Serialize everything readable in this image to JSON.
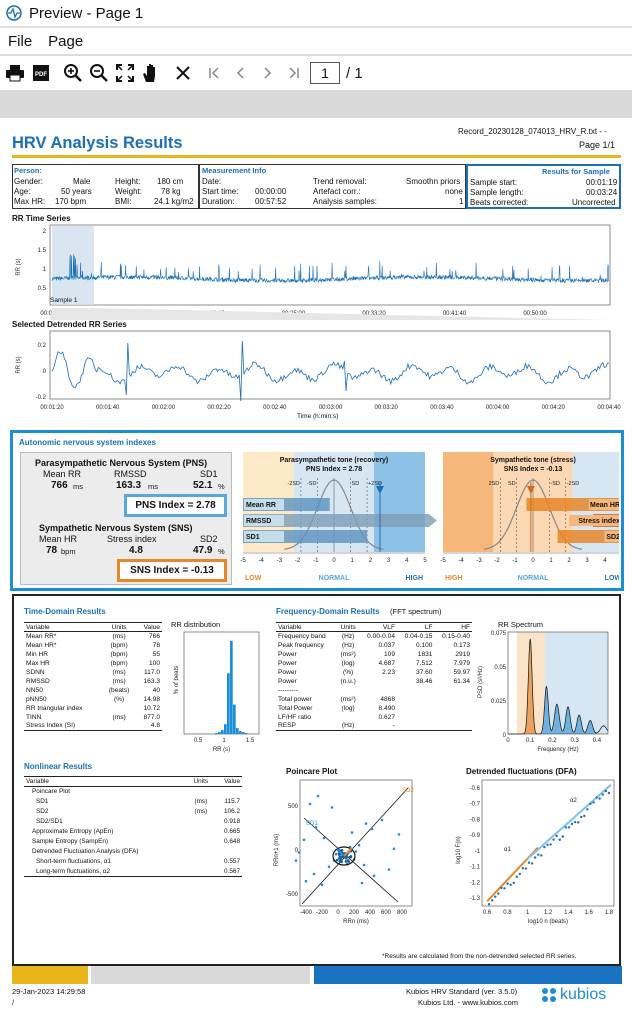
{
  "window": {
    "title": "Preview - Page 1"
  },
  "menu": {
    "file": "File",
    "page": "Page"
  },
  "toolbar": {
    "page_value": "1",
    "page_total": "/ 1"
  },
  "report": {
    "title": "HRV Analysis Results",
    "filename": "Record_20230128_074013_HRV_R.txt - -",
    "page": "Page 1/1",
    "person": {
      "title": "Person:",
      "gender_l": "Gender:",
      "gender_v": "Male",
      "age_l": "Age:",
      "age_v": "50 years",
      "maxhr_l": "Max HR:",
      "maxhr_v": "170 bpm",
      "height_l": "Height:",
      "height_v": "180 cm",
      "weight_l": "Weight:",
      "weight_v": "78 kg",
      "bmi_l": "BMI:",
      "bmi_v": "24.1 kg/m2"
    },
    "measurement": {
      "title": "Measurement Info",
      "date_l": "Date:",
      "date_v": "",
      "start_l": "Start time:",
      "start_v": "00:00:00",
      "dur_l": "Duration:",
      "dur_v": "00:57:52",
      "trend_l": "Trend removal:",
      "trend_v": "Smoothn priors",
      "artefact_l": "Artefact corr.:",
      "artefact_v": "none",
      "samples_l": "Analysis samples:",
      "samples_v": "1"
    },
    "sample": {
      "title": "Results for Sample",
      "start_l": "Sample start:",
      "start_v": "00:01:19",
      "len_l": "Sample length:",
      "len_v": "00:03:24",
      "beats_l": "Beats corrected:",
      "beats_v": "Uncorrected"
    },
    "rr_series": {
      "title": "RR Time Series",
      "ylabel": "RR (s)",
      "yticks": [
        "2",
        "1.5",
        "1",
        "0.5"
      ],
      "xticks": [
        "00:00:00",
        "00:08:20",
        "00:16:40",
        "00:25:00",
        "00:33:20",
        "00:41:40",
        "00:50:00"
      ],
      "sample_label": "Sample 1"
    },
    "detrended": {
      "title": "Selected Detrended RR Series",
      "ylabel": "RR (s)",
      "yticks": [
        "0.2",
        "0",
        "-0.2"
      ],
      "xticks": [
        "00:01:20",
        "00:01:40",
        "00:02:00",
        "00:02:20",
        "00:02:40",
        "00:03:00",
        "00:03:20",
        "00:03:40",
        "00:04:00",
        "00:04:20",
        "00:04:40"
      ],
      "xlabel": "Time (h:min:s)"
    },
    "ans": {
      "title": "Autonomic nervous system indexes",
      "pns_title": "Parasympathetic Nervous System (PNS)",
      "pns_cols": [
        "Mean RR",
        "RMSSD",
        "SD1"
      ],
      "pns_vals": [
        "766",
        "163.3",
        "52.1"
      ],
      "pns_units": [
        "ms",
        "ms",
        "%"
      ],
      "pns_index": "PNS Index = 2.78",
      "sns_title": "Sympathetic Nervous System (SNS)",
      "sns_cols": [
        "Mean HR",
        "Stress index",
        "SD2"
      ],
      "sns_vals": [
        "78",
        "4.8",
        "47.9"
      ],
      "sns_units": [
        "bpm",
        "",
        "%"
      ],
      "sns_index": "SNS Index = -0.13",
      "pns_chart_title": "Parasympathetic tone (recovery)",
      "pns_chart_sub": "PNS Index = 2.78",
      "sns_chart_title": "Sympathetic tone (stress)",
      "sns_chart_sub": "SNS Index = -0.13",
      "pns_bars": [
        "Mean RR",
        "RMSSD",
        "SD1"
      ],
      "sns_bars": [
        "Mean HR",
        "Stress index",
        "SD2"
      ],
      "pns_ticks": [
        "-5",
        "-4",
        "-3",
        "-2",
        "-1",
        "0",
        "1",
        "2",
        "3",
        "4",
        "5"
      ],
      "sns_ticks": [
        "-5",
        "-4",
        "-3",
        "-2",
        "-1",
        "0",
        "1",
        "2",
        "3",
        "4",
        "5"
      ],
      "sd_left": "-2SD",
      "sd_left2": "-SD",
      "sd_right": "SD",
      "sd_right2": "+2SD",
      "sns_sd_left": "2SD",
      "sns_sd_left2": "SD",
      "sns_sd_right": "-SD",
      "sns_sd_right2": "-2SD",
      "low": "LOW",
      "normal": "NORMAL",
      "high": "HIGH"
    },
    "time_domain": {
      "title": "Time-Domain Results",
      "headers": [
        "Variable",
        "Units",
        "Value"
      ],
      "rows": [
        [
          "Mean RR*",
          "(ms)",
          "766"
        ],
        [
          "Mean HR*",
          "(bpm)",
          "78"
        ],
        [
          "Min HR",
          "(bpm)",
          "55"
        ],
        [
          "Max HR",
          "(bpm)",
          "100"
        ],
        [
          "SDNN",
          "(ms)",
          "117.0"
        ],
        [
          "RMSSD",
          "(ms)",
          "163.3"
        ],
        [
          "NN50",
          "(beats)",
          "40"
        ],
        [
          "pNN50",
          "(%)",
          "14.98"
        ],
        [
          "RR triangular index",
          "",
          "10.72"
        ],
        [
          "TINN",
          "(ms)",
          "877.0"
        ],
        [
          "Stress Index (SI)",
          "",
          "4.8"
        ]
      ],
      "dist_title": "RR distribution",
      "dist_ylabel": "% of beats",
      "dist_xlabel": "RR (s)",
      "dist_xticks": [
        "0.5",
        "1",
        "1.5"
      ]
    },
    "freq_domain": {
      "title": "Frequency-Domain Results",
      "subtitle": "(FFT spectrum)",
      "headers": [
        "Variable",
        "Units",
        "VLF",
        "LF",
        "HF"
      ],
      "rows": [
        [
          "Frequency band",
          "(Hz)",
          "0.00-0.04",
          "0.04-0.15",
          "0.15-0.40"
        ],
        [
          "Peak frequency",
          "(Hz)",
          "0.037",
          "0.100",
          "0.173"
        ],
        [
          "Power",
          "(ms²)",
          "109",
          "1831",
          "2919"
        ],
        [
          "Power",
          "(log)",
          "4.687",
          "7.512",
          "7.979"
        ],
        [
          "Power",
          "(%)",
          "2.23",
          "37.60",
          "59.97"
        ],
        [
          "Power",
          "(n.u.)",
          "",
          "38.46",
          "61.34"
        ]
      ],
      "dash": "---------",
      "rows2": [
        [
          "Total power",
          "(ms²)",
          "4868"
        ],
        [
          "Total Power",
          "(log)",
          "8.490"
        ],
        [
          "LF/HF ratio",
          "",
          "0.627"
        ],
        [
          "RESP",
          "(Hz)",
          "-"
        ]
      ],
      "spec_title": "RR Spectrum",
      "spec_ylabel": "PSD (s²/Hz)",
      "spec_xlabel": "Frequency (Hz)",
      "spec_yticks": [
        "0.075",
        "0.05",
        "0.025",
        "0"
      ],
      "spec_xticks": [
        "0",
        "0.1",
        "0.2",
        "0.3",
        "0.4"
      ]
    },
    "nonlinear": {
      "title": "Nonlinear Results",
      "headers": [
        "Variable",
        "Units",
        "Value"
      ],
      "rows": [
        [
          "Poincare Plot",
          "",
          ""
        ],
        [
          "SD1",
          "(ms)",
          "115.7"
        ],
        [
          "SD2",
          "(ms)",
          "106.2"
        ],
        [
          "SD2/SD1",
          "",
          "0.918"
        ],
        [
          "Approximate Entropy (ApEn)",
          "",
          "0.665"
        ],
        [
          "Sample Entropy (SampEn)",
          "",
          "0.648"
        ],
        [
          "Detrended Fluctuation Analysis (DFA)",
          "",
          ""
        ],
        [
          "Short-term fluctuations, α1",
          "",
          "0.557"
        ],
        [
          "Long-term fluctuations, α2",
          "",
          "0.567"
        ]
      ],
      "poincare_title": "Poincare Plot",
      "poincare_ylabel": "RRn+1 (ms)",
      "poincare_xlabel": "RRn (ms)",
      "poincare_xticks": [
        "-400",
        "-200",
        "0",
        "200",
        "400",
        "600",
        "800"
      ],
      "poincare_yticks": [
        "500",
        "0",
        "-500"
      ],
      "sd1": "SD1",
      "sd2": "SD2",
      "dfa_title": "Detrended fluctuations (DFA)",
      "dfa_ylabel": "log10 F(n)",
      "dfa_xlabel": "log10 n (beats)",
      "dfa_yticks": [
        "-0.6",
        "-0.7",
        "-0.8",
        "-0.9",
        "-1",
        "-1.1",
        "-1.2",
        "-1.3"
      ],
      "dfa_xticks": [
        "0.6",
        "0.8",
        "1",
        "1.2",
        "1.4",
        "1.6",
        "1.8"
      ],
      "a1": "α1",
      "a2": "α2"
    },
    "footnote": "*Results are calculated from the non-detrended selected RR series.",
    "footer": {
      "datetime": "29-Jan-2023 14:29:58",
      "slash": "/",
      "product": "Kubios HRV Standard (ver. 3.5.0)",
      "company": "Kubios Ltd. - www.kubios.com",
      "logo": "kubios"
    }
  },
  "colors": {
    "accent": "#1a6fb5",
    "yellow": "#e8b51c",
    "orange": "#e8862a",
    "lightblue": "#b7d7ee"
  }
}
